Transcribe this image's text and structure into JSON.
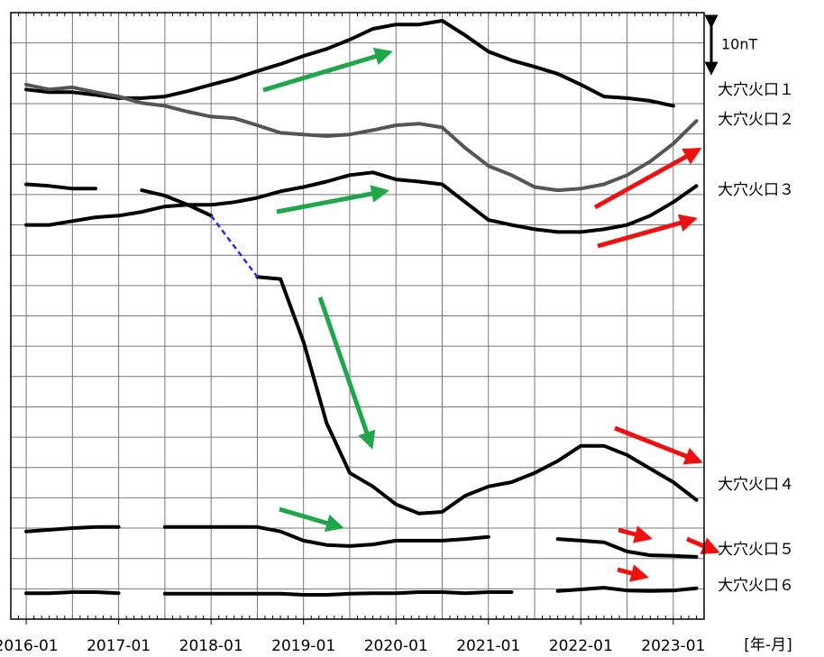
{
  "chart_data": {
    "type": "line",
    "x_label": "[年-月]",
    "scale_bar": {
      "value": 10,
      "label": "10nT"
    },
    "x": [
      "2016-01",
      "2016-04",
      "2016-07",
      "2016-10",
      "2017-01",
      "2017-04",
      "2017-07",
      "2017-10",
      "2018-01",
      "2018-04",
      "2018-07",
      "2018-10",
      "2019-01",
      "2019-04",
      "2019-07",
      "2019-10",
      "2020-01",
      "2020-04",
      "2020-07",
      "2020-10",
      "2021-01",
      "2021-04",
      "2021-07",
      "2021-10",
      "2022-01",
      "2022-04",
      "2022-07",
      "2022-10",
      "2023-01",
      "2023-04"
    ],
    "xlim": [
      "2015-11",
      "2023-05"
    ],
    "xticks": [
      "2016-01",
      "2017-01",
      "2018-01",
      "2019-01",
      "2020-01",
      "2021-01",
      "2022-01",
      "2023-01"
    ],
    "ylim": [
      0,
      112
    ],
    "yticks": [
      0,
      5.6,
      11.2,
      16.8,
      22.4,
      28,
      33.6,
      39.2,
      44.8,
      50.4,
      56,
      61.6,
      67.2,
      72.8,
      78.4,
      84,
      89.6,
      95.2,
      100.8,
      106.4,
      112
    ],
    "grid": true,
    "series": [
      {
        "name": "大穴火口１",
        "color": "#000000",
        "values": [
          97.8,
          97.3,
          97.3,
          96.8,
          96.2,
          96.2,
          96.5,
          97.5,
          98.7,
          99.8,
          101.2,
          102.5,
          104,
          105.3,
          107,
          109,
          109.8,
          109.8,
          110.5,
          107.8,
          104.8,
          103.2,
          102,
          100.7,
          98.7,
          96.5,
          96.2,
          95.7,
          94.8,
          null
        ]
      },
      {
        "name": "大穴火口２",
        "color": "#555555",
        "values": [
          98.7,
          97.8,
          98.2,
          97.3,
          96.5,
          95.3,
          94.8,
          93.7,
          92.8,
          92.5,
          91.2,
          89.8,
          89.5,
          89.2,
          89.5,
          90.3,
          91.2,
          91.5,
          90.8,
          87,
          83.7,
          82,
          79.8,
          79.2,
          79.5,
          80.3,
          82,
          84.5,
          87.8,
          92
        ]
      },
      {
        "name": "大穴火口３",
        "color": "#000000",
        "values": [
          72.8,
          72.8,
          73.5,
          74.2,
          74.5,
          75.2,
          76.2,
          76.5,
          76.5,
          77,
          77.8,
          79,
          79.8,
          80.8,
          82,
          82.5,
          81.2,
          80.8,
          80.3,
          77,
          73.7,
          72.8,
          72,
          71.5,
          71.5,
          72,
          72.8,
          74.5,
          77,
          80
        ]
      },
      {
        "name": "大穴火口４",
        "color": "#000000",
        "values": [
          80.3,
          80,
          79.5,
          79.5,
          null,
          79.2,
          78.2,
          76.5,
          74.5,
          null,
          63.2,
          62.8,
          51.2,
          36.2,
          27,
          24.5,
          21.2,
          19.5,
          19.8,
          22.8,
          24.5,
          25.3,
          27,
          29.2,
          32,
          32,
          30.3,
          27.8,
          25.3,
          22
        ],
        "bridge": {
          "from": 8,
          "to": 10,
          "color": "#2233dd"
        }
      },
      {
        "name": "大穴火口５",
        "color": "#000000",
        "values": [
          16.2,
          16.5,
          16.8,
          17,
          17,
          null,
          17,
          17,
          17,
          17,
          17,
          16.2,
          14.5,
          13.7,
          13.5,
          13.8,
          14.5,
          14.5,
          14.5,
          14.8,
          15.2,
          null,
          null,
          14.8,
          14.5,
          14.2,
          12.5,
          11.8,
          11.7,
          11.5
        ]
      },
      {
        "name": "大穴火口６",
        "color": "#000000",
        "values": [
          4.8,
          4.8,
          5,
          5,
          4.8,
          null,
          4.7,
          4.7,
          4.7,
          4.7,
          4.7,
          4.7,
          4.5,
          4.5,
          4.7,
          4.8,
          4.8,
          5,
          5,
          4.8,
          5,
          5,
          null,
          5.2,
          5.5,
          5.8,
          5.3,
          5.2,
          5.3,
          5.7
        ]
      }
    ]
  }
}
